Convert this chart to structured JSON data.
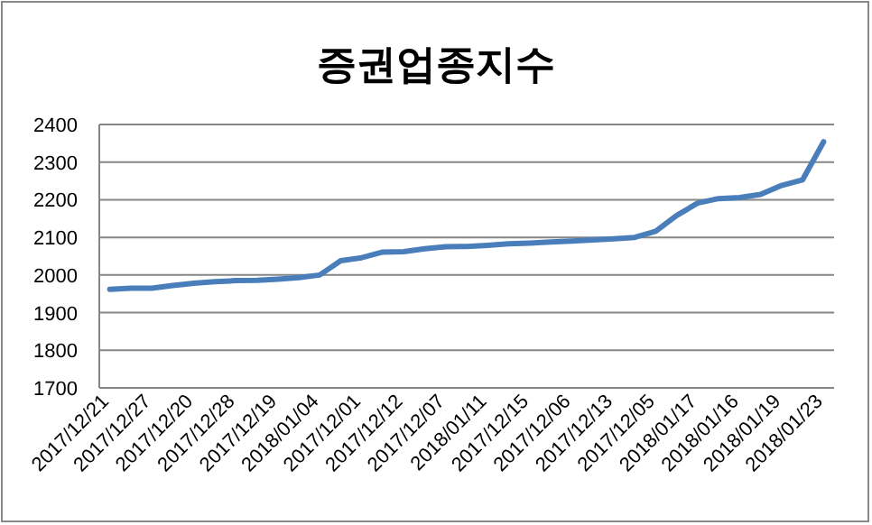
{
  "chart_data": {
    "type": "line",
    "title": "증권업종지수",
    "categories": [
      "2017/12/21",
      null,
      "2017/12/27",
      null,
      "2017/12/20",
      null,
      "2017/12/28",
      null,
      "2017/12/19",
      null,
      "2018/01/04",
      null,
      "2017/12/01",
      null,
      "2017/12/12",
      null,
      "2017/12/07",
      null,
      "2018/01/11",
      null,
      "2017/12/15",
      null,
      "2017/12/06",
      null,
      "2017/12/13",
      null,
      "2017/12/05",
      null,
      "2018/01/17",
      null,
      "2018/01/16",
      null,
      "2018/01/19",
      null,
      "2018/01/23"
    ],
    "series": [
      {
        "color": "#4a7ebb",
        "values": [
          1962,
          1965,
          1965,
          1972,
          1978,
          1982,
          1985,
          1986,
          1989,
          1993,
          2000,
          2038,
          2046,
          2061,
          2062,
          2070,
          2075,
          2076,
          2079,
          2083,
          2085,
          2088,
          2090,
          2093,
          2096,
          2100,
          2116,
          2158,
          2191,
          2203,
          2206,
          2214,
          2238,
          2253,
          2354
        ]
      }
    ],
    "ylim": [
      1700,
      2400
    ],
    "yticks": [
      1700,
      1800,
      1900,
      2000,
      2100,
      2200,
      2300,
      2400
    ],
    "grid": "y",
    "marker": "none",
    "line_style": "solid"
  }
}
